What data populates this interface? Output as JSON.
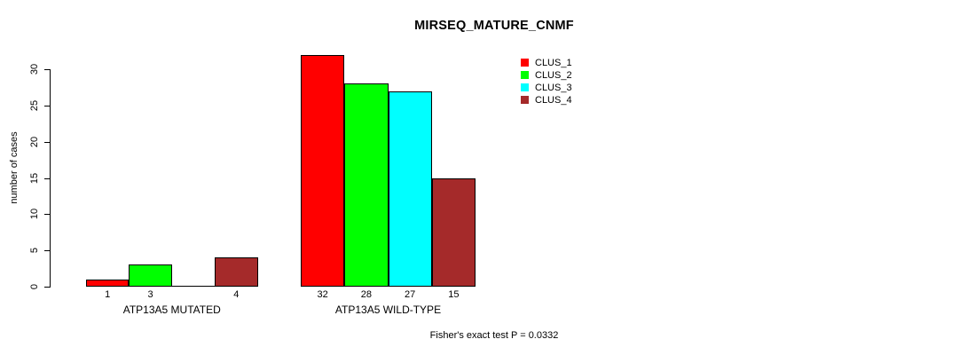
{
  "page": {
    "background": "#FFFFFF",
    "text_color": "#000000"
  },
  "chart_data": {
    "type": "bar",
    "title": "MIRSEQ_MATURE_CNMF",
    "ylabel": "number of cases",
    "xlabel": "",
    "ylim": [
      0,
      32
    ],
    "yticks": [
      0,
      5,
      10,
      15,
      20,
      25,
      30
    ],
    "grid": false,
    "legend_position": "top-right",
    "categories": [
      "ATP13A5 MUTATED",
      "ATP13A5 WILD-TYPE"
    ],
    "series": [
      {
        "name": "CLUS_1",
        "color": "#FF0000",
        "values": [
          1,
          32
        ]
      },
      {
        "name": "CLUS_2",
        "color": "#00FF00",
        "values": [
          3,
          28
        ]
      },
      {
        "name": "CLUS_3",
        "color": "#00FFFF",
        "values": [
          0,
          27
        ]
      },
      {
        "name": "CLUS_4",
        "color": "#A52A2A",
        "values": [
          4,
          15
        ]
      }
    ],
    "bar_count_labels": [
      [
        "1",
        "3",
        "",
        "4"
      ],
      [
        "32",
        "28",
        "27",
        "15"
      ]
    ],
    "annotation": "Fisher's exact test P = 0.0332"
  }
}
